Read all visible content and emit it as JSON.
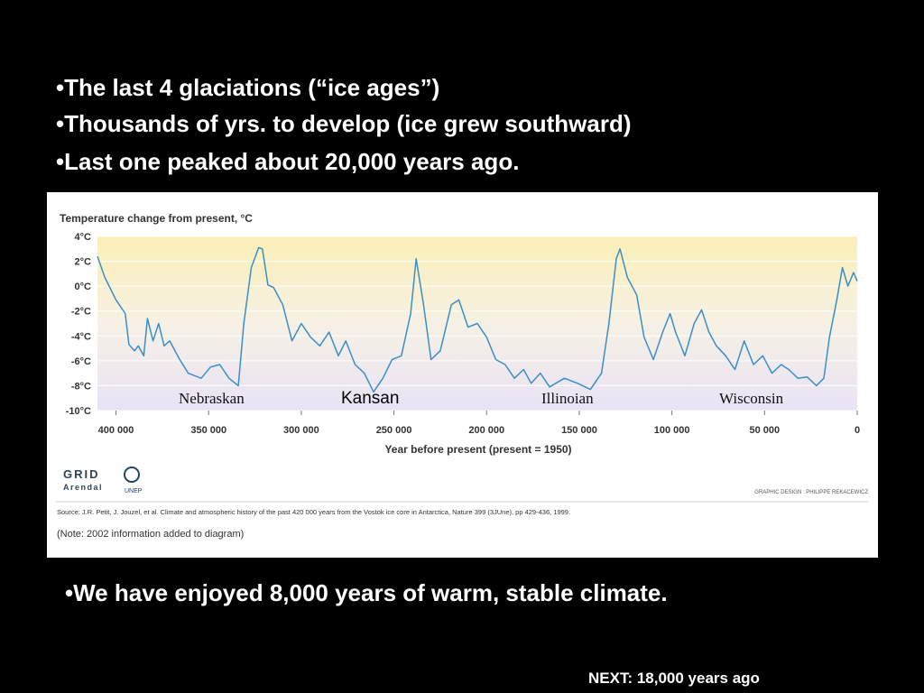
{
  "bullets": [
    "•The last 4 glaciations (“ice ages”)",
    "•Thousands of yrs. to develop (ice grew southward)",
    "•Last one peaked about 20,000 years ago."
  ],
  "chart_data": {
    "type": "line",
    "title": "Temperature change from present, °C",
    "xlabel": "Year before present (present = 1950)",
    "x": [
      410000,
      406000,
      400000,
      395000,
      393000,
      390000,
      388000,
      385000,
      383000,
      380000,
      377000,
      374000,
      371000,
      366000,
      361000,
      354000,
      349000,
      344000,
      339000,
      334000,
      331000,
      327000,
      323000,
      321000,
      318000,
      315000,
      310000,
      305000,
      300000,
      295000,
      290000,
      285000,
      280000,
      276000,
      271000,
      266000,
      261000,
      256000,
      251000,
      246000,
      241000,
      238000,
      234000,
      230000,
      225000,
      219000,
      215000,
      210000,
      205000,
      200000,
      195000,
      190000,
      185000,
      180000,
      176000,
      171000,
      166000,
      158000,
      151000,
      144000,
      138000,
      134000,
      130000,
      128000,
      124000,
      119000,
      115000,
      110000,
      105000,
      101000,
      98000,
      93000,
      88000,
      84000,
      80000,
      76000,
      71000,
      66000,
      61000,
      56000,
      51000,
      46000,
      41000,
      37000,
      32000,
      27000,
      22000,
      18000,
      15000,
      11000,
      8000,
      5000,
      2000,
      0
    ],
    "series": [
      {
        "color": "#3b8ec8",
        "values": [
          2.4,
          0.7,
          -1.1,
          -2.2,
          -4.7,
          -5.2,
          -4.8,
          -5.6,
          -2.6,
          -4.4,
          -3,
          -4.8,
          -4.4,
          -5.8,
          -7,
          -7.4,
          -6.5,
          -6.3,
          -7.4,
          -8,
          -3,
          1.5,
          3.1,
          3,
          0.1,
          -0.1,
          -1.5,
          -4.4,
          -3,
          -4.1,
          -4.8,
          -3.7,
          -5.6,
          -4.4,
          -6.3,
          -7,
          -8.5,
          -7.4,
          -5.9,
          -5.6,
          -2.2,
          2.2,
          -1.5,
          -5.9,
          -5.2,
          -1.5,
          -1.1,
          -3.3,
          -3,
          -4.1,
          -5.9,
          -6.3,
          -7.4,
          -6.7,
          -7.8,
          -7,
          -8.1,
          -7.4,
          -7.8,
          -8.3,
          -7,
          -3,
          2.2,
          3,
          0.7,
          -0.7,
          -4.1,
          -5.9,
          -3.7,
          -2.2,
          -3.7,
          -5.6,
          -3,
          -1.9,
          -3.7,
          -4.8,
          -5.6,
          -6.7,
          -4.4,
          -6.3,
          -5.6,
          -7,
          -6.3,
          -6.7,
          -7.4,
          -7.3,
          -8,
          -7.4,
          -4.1,
          -1.1,
          1.5,
          0,
          1.1,
          0.4
        ]
      }
    ],
    "xlim": [
      410000,
      0
    ],
    "ylim": [
      -10,
      4
    ],
    "xticks": [
      {
        "value": 400000,
        "label": "400 000"
      },
      {
        "value": 350000,
        "label": "350 000"
      },
      {
        "value": 300000,
        "label": "300 000"
      },
      {
        "value": 250000,
        "label": "250 000"
      },
      {
        "value": 200000,
        "label": "200 000"
      },
      {
        "value": 150000,
        "label": "150 000"
      },
      {
        "value": 100000,
        "label": "100 000"
      },
      {
        "value": 50000,
        "label": "50 000"
      },
      0
    ],
    "yticks": [
      {
        "value": 4,
        "label": "4°C"
      },
      {
        "value": 2,
        "label": "2°C"
      },
      {
        "value": 0,
        "label": "0°C"
      },
      {
        "value": -2,
        "label": "-2°C"
      },
      {
        "value": -4,
        "label": "-4°C"
      },
      {
        "value": -6,
        "label": "-6°C"
      },
      {
        "value": -8,
        "label": "-8°C"
      },
      {
        "value": -10,
        "label": "-10°C"
      }
    ],
    "annotations": [
      "Nebraskan",
      "Kansan",
      "Illinoian",
      "Wisconsin"
    ],
    "logo": "GRID",
    "logo_sub": "Arendal",
    "logo2": "UNEP",
    "credit": "GRAPHIC DESIGN : PHILIPPE REKACEWICZ",
    "source": "Source: J.R. Petit, J. Jouzel, et al. Climate and atmospheric history of the past 420 000 years from the Vostok ice core in Antarctica, Nature 399 (3JUne), pp 429-436, 1999.",
    "note": "(Note: 2002 information added to diagram)"
  },
  "bottom_bullet": "•We have enjoyed 8,000 years of warm, stable climate.",
  "next": "NEXT: 18,000 years ago"
}
